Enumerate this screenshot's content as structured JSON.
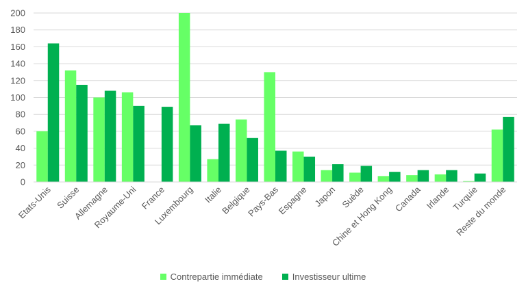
{
  "chart_data": {
    "type": "bar",
    "title": "",
    "xlabel": "",
    "ylabel": "",
    "ylim": [
      0,
      200
    ],
    "yticks": [
      0,
      20,
      40,
      60,
      80,
      100,
      120,
      140,
      160,
      180,
      200
    ],
    "grid": true,
    "legend_position": "bottom",
    "categories": [
      "Etats-Unis",
      "Suisse",
      "Allemagne",
      "Royaume-Uni",
      "France",
      "Luxembourg",
      "Italie",
      "Belgique",
      "Pays-Bas",
      "Espagne",
      "Japon",
      "Suède",
      "Chine et Hong Kong",
      "Canada",
      "Irlande",
      "Turquie",
      "Reste du monde"
    ],
    "series": [
      {
        "name": "Contrepartie immédiate",
        "color": "#66ff66",
        "values": [
          60,
          132,
          100,
          106,
          0,
          200,
          27,
          74,
          130,
          36,
          14,
          11,
          7,
          8,
          9,
          1,
          62
        ]
      },
      {
        "name": "Investisseur ultime",
        "color": "#00b050",
        "values": [
          164,
          115,
          108,
          90,
          89,
          67,
          69,
          52,
          37,
          30,
          21,
          19,
          12,
          14,
          14,
          10,
          77
        ]
      }
    ]
  }
}
